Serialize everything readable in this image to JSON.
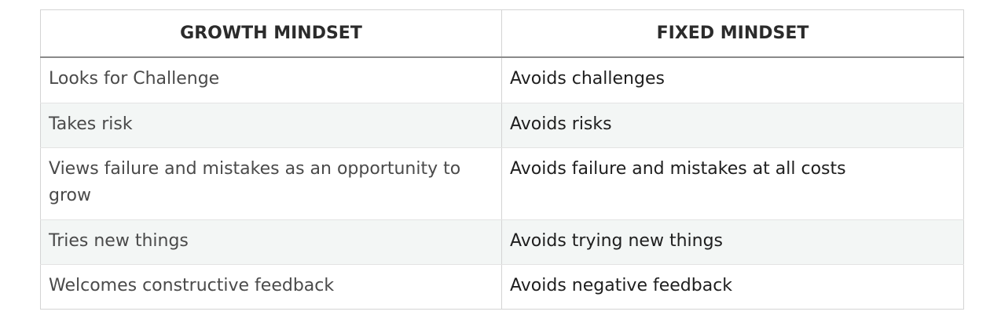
{
  "table": {
    "headers": [
      "GROWTH MINDSET",
      "FIXED MINDSET"
    ],
    "rows": [
      {
        "growth": "Looks for Challenge",
        "fixed": "Avoids challenges"
      },
      {
        "growth": "Takes risk",
        "fixed": "Avoids risks"
      },
      {
        "growth": "Views failure and mistakes as an opportunity to grow",
        "fixed": "Avoids failure and mistakes at all costs"
      },
      {
        "growth": "Tries new things",
        "fixed": "Avoids trying new things"
      },
      {
        "growth": "Welcomes constructive feedback",
        "fixed": "Avoids negative feedback"
      }
    ]
  },
  "colors": {
    "header_text": "#2b2b2b",
    "stripe_background": "#f3f6f5",
    "border": "#d4d4d4"
  }
}
